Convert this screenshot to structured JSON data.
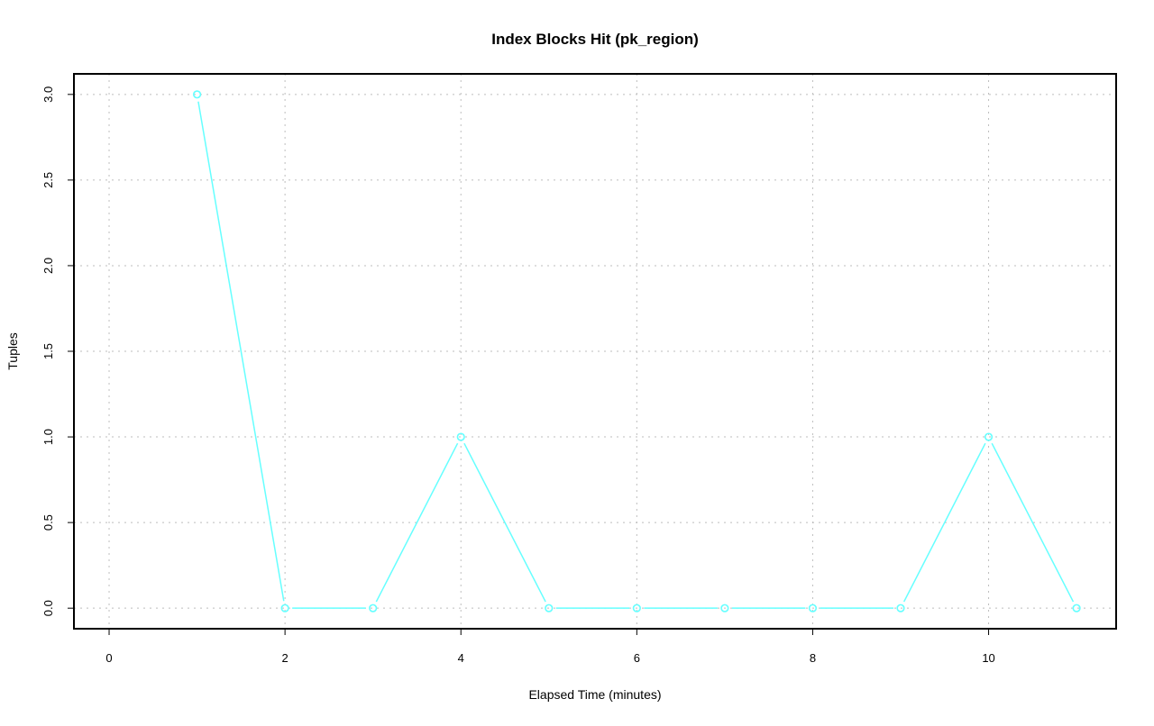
{
  "chart_data": {
    "type": "line",
    "title": "Index Blocks Hit (pk_region)",
    "xlabel": "Elapsed Time (minutes)",
    "ylabel": "Tuples",
    "x": [
      1,
      2,
      3,
      4,
      5,
      6,
      7,
      8,
      9,
      10,
      11
    ],
    "series": [
      {
        "values": [
          3,
          0,
          0,
          1,
          0,
          0,
          0,
          0,
          0,
          1,
          0
        ],
        "color": "#66FFFF",
        "markers": "open-circle"
      }
    ],
    "xlim": [
      -0.4,
      11.45
    ],
    "ylim": [
      -0.12,
      3.12
    ],
    "xticks": [
      0,
      2,
      4,
      6,
      8,
      10
    ],
    "xtick_labels": [
      "0",
      "2",
      "4",
      "6",
      "8",
      "10"
    ],
    "yticks": [
      0,
      0.5,
      1,
      1.5,
      2,
      2.5,
      3
    ],
    "ytick_labels": [
      "0.0",
      "0.5",
      "1.0",
      "1.5",
      "2.0",
      "2.5",
      "3.0"
    ],
    "grid": true,
    "grid_style": "dotted",
    "grid_color": "#BEBEBE",
    "legend": "none"
  }
}
